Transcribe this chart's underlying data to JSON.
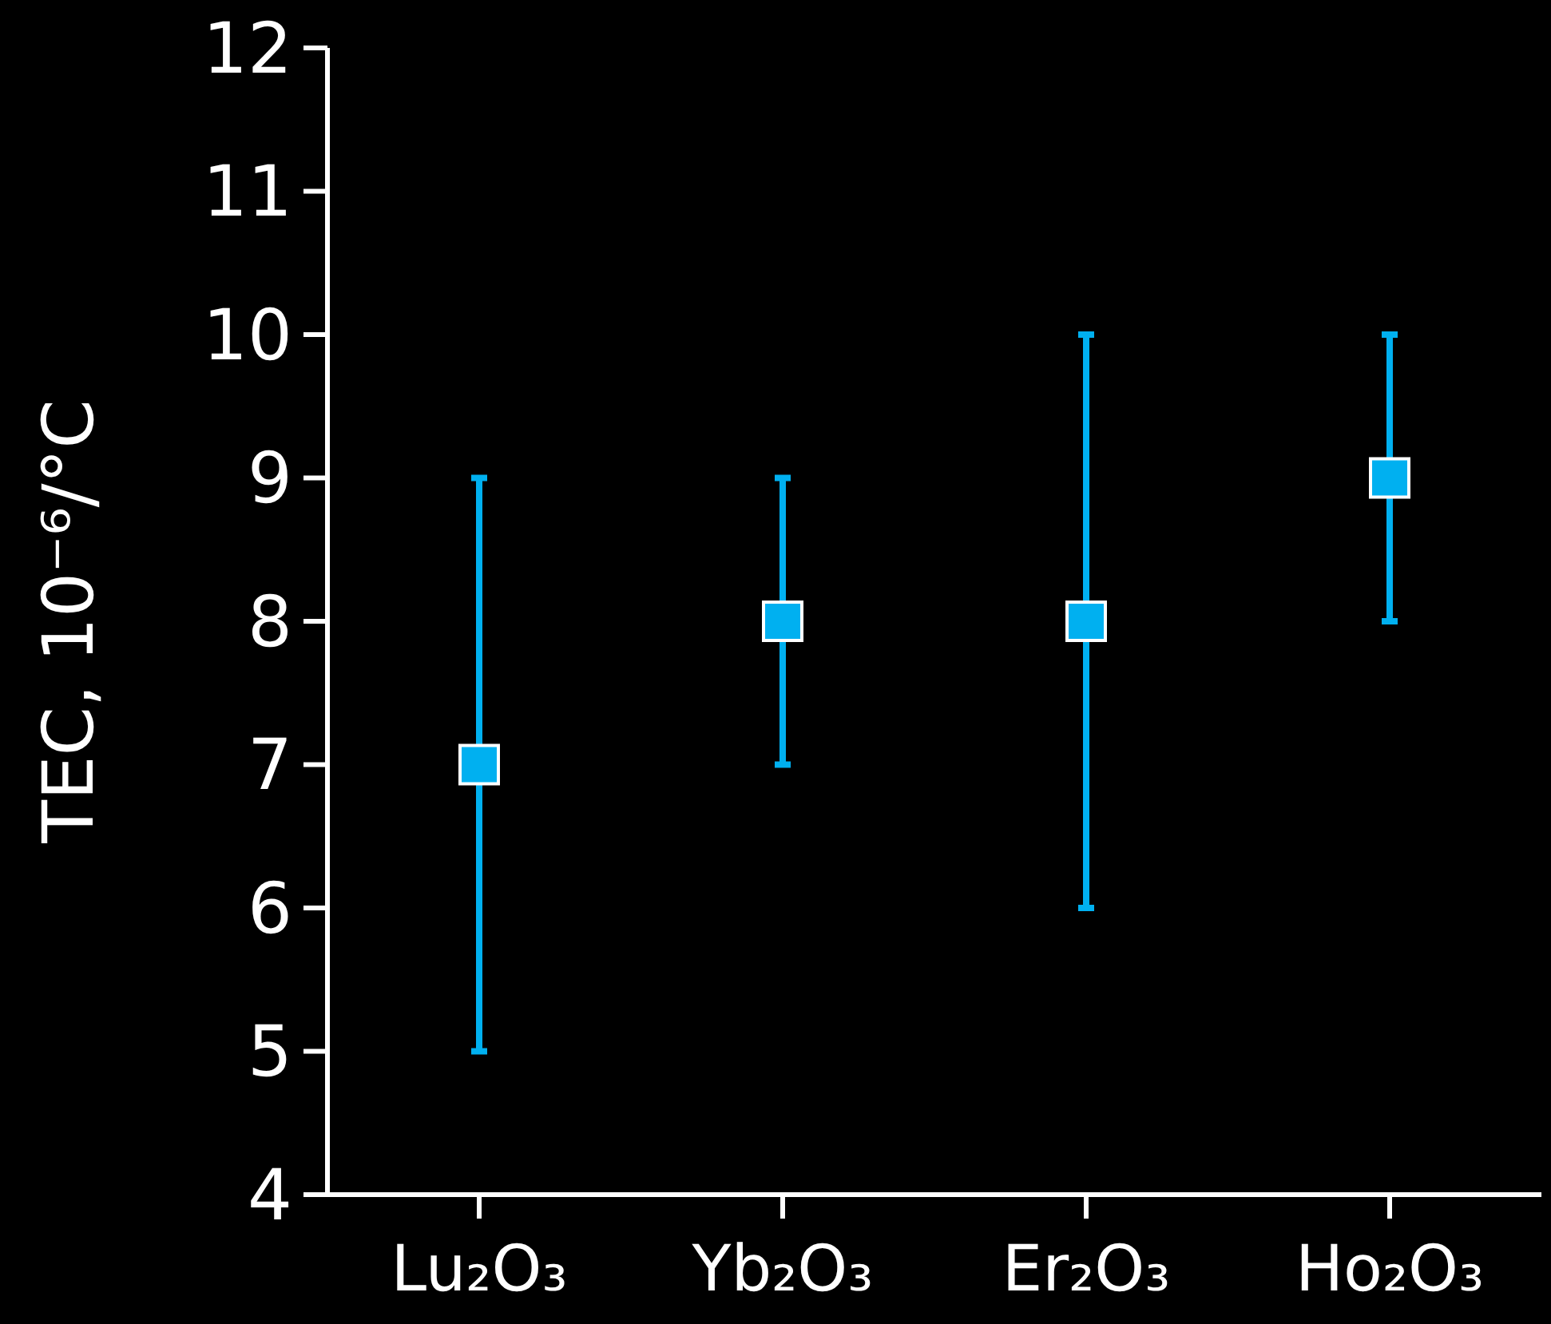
{
  "chart_data": {
    "type": "scatter",
    "ylabel": "TEC, 10⁻⁶/°C",
    "categories": [
      "Lu₂O₃",
      "Yb₂O₃",
      "Er₂O₃",
      "Ho₂O₃"
    ],
    "values": [
      7,
      8,
      8,
      9
    ],
    "errors": [
      [
        5,
        9
      ],
      [
        7,
        9
      ],
      [
        6,
        10
      ],
      [
        8,
        10
      ]
    ],
    "color": "#00b0f0",
    "marker": "square",
    "ylim": [
      4,
      12
    ],
    "yticks": [
      4,
      5,
      6,
      7,
      8,
      9,
      10,
      11,
      12
    ],
    "grid": false
  }
}
